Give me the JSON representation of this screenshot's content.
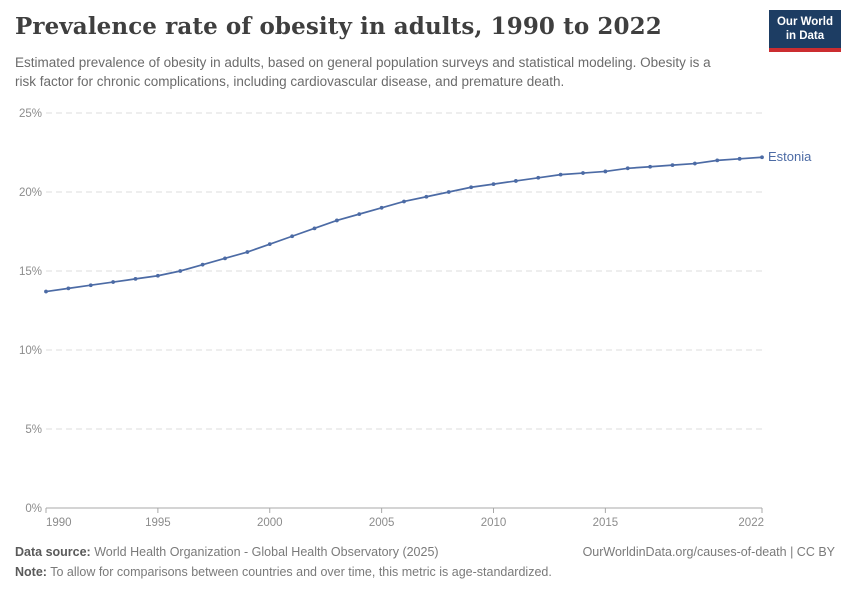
{
  "header": {
    "title": "Prevalence rate of obesity in adults, 1990 to 2022",
    "subtitle": "Estimated prevalence of obesity in adults, based on general population surveys and statistical modeling. Obesity is a risk factor for chronic complications, including cardiovascular disease, and premature death."
  },
  "logo": {
    "line1": "Our World",
    "line2": "in Data",
    "bg_color": "#1d3d63",
    "accent_color": "#cb2d30"
  },
  "chart_data": {
    "type": "line",
    "title": "Prevalence rate of obesity in adults, 1990 to 2022",
    "xlabel": "",
    "ylabel": "",
    "xlim": [
      1990,
      2022
    ],
    "ylim": [
      0,
      25
    ],
    "yticks": [
      0,
      5,
      10,
      15,
      20,
      25
    ],
    "ytick_suffix": "%",
    "xticks": [
      1990,
      1995,
      2000,
      2005,
      2010,
      2015,
      2022
    ],
    "grid": "horizontal-dashed",
    "legend_position": "end-of-line-label",
    "colors": {
      "grid": "#dcdcdc",
      "axis": "#a8a8a8",
      "tick_label": "#8c8c8c"
    },
    "series": [
      {
        "name": "Estonia",
        "color": "#4c6ba5",
        "x": [
          1990,
          1991,
          1992,
          1993,
          1994,
          1995,
          1996,
          1997,
          1998,
          1999,
          2000,
          2001,
          2002,
          2003,
          2004,
          2005,
          2006,
          2007,
          2008,
          2009,
          2010,
          2011,
          2012,
          2013,
          2014,
          2015,
          2016,
          2017,
          2018,
          2019,
          2020,
          2021,
          2022
        ],
        "values": [
          13.7,
          13.9,
          14.1,
          14.3,
          14.5,
          14.7,
          15.0,
          15.4,
          15.8,
          16.2,
          16.7,
          17.2,
          17.7,
          18.2,
          18.6,
          19.0,
          19.4,
          19.7,
          20.0,
          20.3,
          20.5,
          20.7,
          20.9,
          21.1,
          21.2,
          21.3,
          21.5,
          21.6,
          21.7,
          21.8,
          22.0,
          22.1,
          22.2
        ]
      }
    ]
  },
  "footer": {
    "source_label": "Data source:",
    "source_text": " World Health Organization - Global Health Observatory (2025)",
    "right_text": "OurWorldinData.org/causes-of-death | CC BY",
    "note_label": "Note:",
    "note_text": " To allow for comparisons between countries and over time, this metric is age-standardized."
  }
}
